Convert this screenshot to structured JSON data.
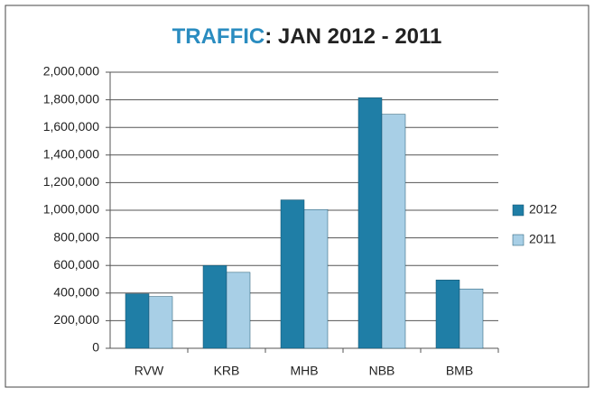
{
  "chart_data": {
    "type": "bar",
    "title": [
      "TRAFFIC",
      ":  JAN 2012 - 2011"
    ],
    "categories": [
      "RVW",
      "KRB",
      "MHB",
      "NBB",
      "BMB"
    ],
    "series": [
      {
        "name": "2012",
        "color": "#1f7ea6",
        "values": [
          395000,
          600000,
          1075000,
          1815000,
          495000
        ]
      },
      {
        "name": "2011",
        "color": "#a8cfe6",
        "values": [
          375000,
          550000,
          1005000,
          1695000,
          430000
        ]
      }
    ],
    "ylim": [
      0,
      2000000
    ],
    "yticks": [
      0,
      {
        "value": 200000,
        "label": "200,000"
      },
      {
        "value": 400000,
        "label": "400,000"
      },
      {
        "value": 600000,
        "label": "600,000"
      },
      {
        "value": 800000,
        "label": "800,000"
      },
      {
        "value": 1000000,
        "label": "1,000,000"
      },
      {
        "value": 1200000,
        "label": "1,200,000"
      },
      {
        "value": 1400000,
        "label": "1,400,000"
      },
      {
        "value": 1600000,
        "label": "1,600,000"
      },
      {
        "value": 1800000,
        "label": "1,800,000"
      },
      {
        "value": 2000000,
        "label": "2,000,000"
      }
    ],
    "grid": true,
    "legend": "right"
  }
}
